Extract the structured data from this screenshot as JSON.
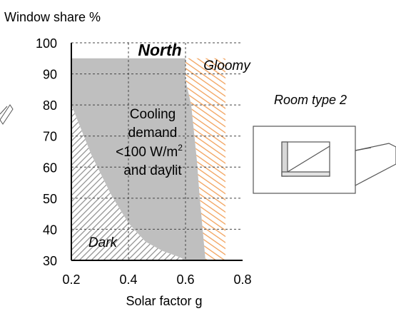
{
  "chart_data": {
    "type": "area",
    "title": "North",
    "xlabel": "Solar factor g",
    "ylabel": "Window share %",
    "xlim": [
      0.2,
      0.8
    ],
    "ylim": [
      30,
      100
    ],
    "xticks": [
      "0.2",
      "0.4",
      "0.6",
      "0.8"
    ],
    "yticks": [
      "30",
      "40",
      "50",
      "60",
      "70",
      "80",
      "90",
      "100"
    ],
    "grid": true,
    "regions": [
      {
        "name": "Dark",
        "fill": "hatch",
        "color": "#8c8c8c",
        "points": [
          [
            0.2,
            30
          ],
          [
            0.2,
            80
          ],
          [
            0.27,
            64
          ],
          [
            0.34,
            51
          ],
          [
            0.4,
            42
          ],
          [
            0.46,
            36
          ],
          [
            0.52,
            33
          ],
          [
            0.58,
            31
          ],
          [
            0.6,
            30
          ]
        ]
      },
      {
        "name": "Gloomy",
        "fill": "hatch",
        "color": "#f2a25c",
        "points": [
          [
            0.6,
            95
          ],
          [
            0.74,
            95
          ],
          [
            0.74,
            30
          ],
          [
            0.67,
            30
          ],
          [
            0.65,
            50
          ],
          [
            0.64,
            62
          ],
          [
            0.62,
            80
          ],
          [
            0.6,
            88
          ]
        ]
      },
      {
        "name": "Cooling demand",
        "fill": "solid",
        "color": "#bfbfbf",
        "points": [
          [
            0.2,
            95
          ],
          [
            0.6,
            95
          ],
          [
            0.6,
            88
          ],
          [
            0.62,
            80
          ],
          [
            0.64,
            62
          ],
          [
            0.65,
            50
          ],
          [
            0.67,
            30
          ],
          [
            0.6,
            30
          ],
          [
            0.58,
            31
          ],
          [
            0.52,
            33
          ],
          [
            0.46,
            36
          ],
          [
            0.4,
            42
          ],
          [
            0.34,
            51
          ],
          [
            0.27,
            64
          ],
          [
            0.2,
            80
          ]
        ]
      }
    ],
    "annotations": {
      "dark_label": "Dark",
      "gloomy_label": "Gloomy",
      "center_line1": "Cooling",
      "center_line2": "demand",
      "center_line3_main": "<100 W/m",
      "center_line3_sup": "2",
      "center_line4": "and daylit",
      "room_type": "Room type 2"
    }
  }
}
